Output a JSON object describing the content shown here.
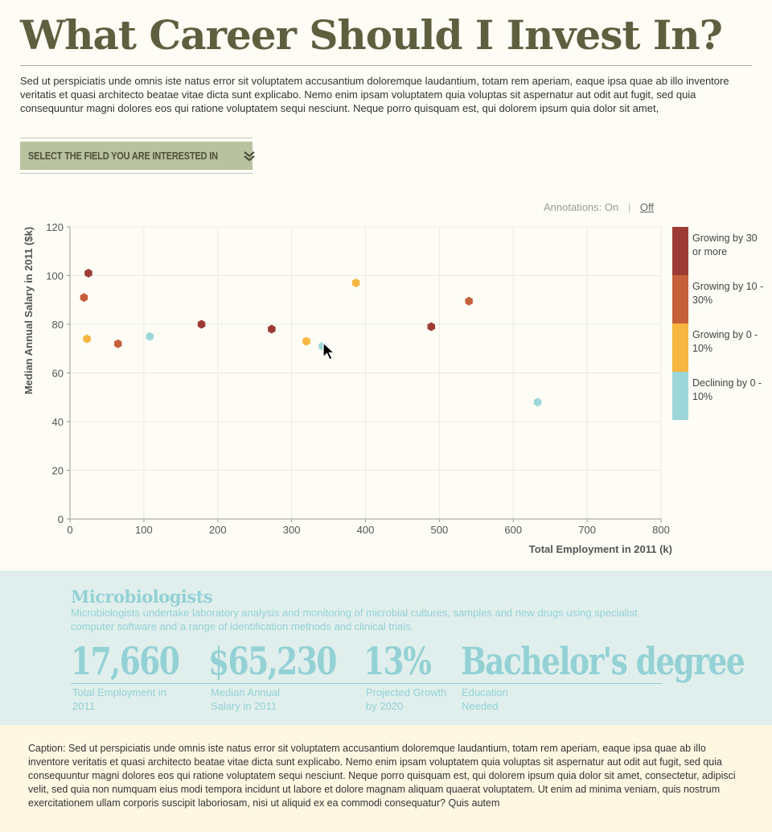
{
  "page": {
    "title": "What Career Should I Invest In?",
    "intro": "Sed ut perspiciatis unde omnis iste natus error sit voluptatem accusantium doloremque laudantium, totam rem aperiam, eaque ipsa quae ab illo inventore veritatis et quasi architecto beatae vitae dicta sunt explicabo. Nemo enim ipsam voluptatem quia voluptas sit aspernatur aut odit aut fugit, sed quia consequuntur magni dolores eos qui ratione voluptatem sequi nesciunt. Neque porro quisquam est, qui dolorem ipsum quia dolor sit amet,"
  },
  "field_select": {
    "label": "SELECT THE FIELD YOU ARE INTERESTED IN",
    "icon": "double-chevron-down-icon"
  },
  "annotations": {
    "label": "Annotations:",
    "on": "On",
    "separator": "|",
    "off": "Off",
    "selected": "Off"
  },
  "legend": {
    "items": [
      {
        "label": "Growing by 30 or more",
        "color": "#9e3a35"
      },
      {
        "label": "Growing by 10 - 30%",
        "color": "#c6603a"
      },
      {
        "label": "Growing by 0 - 10%",
        "color": "#f6b63f"
      },
      {
        "label": "Declining by 0 - 10%",
        "color": "#9dd6d8"
      }
    ]
  },
  "chart_data": {
    "type": "scatter",
    "title": "",
    "xlabel": "Total Employment in 2011 (k)",
    "ylabel": "Median Annual Salary in 2011 ($k)",
    "xlim": [
      0,
      800
    ],
    "ylim": [
      0,
      120
    ],
    "xticks": [
      0,
      100,
      200,
      300,
      400,
      500,
      600,
      700,
      800
    ],
    "yticks": [
      0,
      20,
      40,
      60,
      80,
      100,
      120
    ],
    "grid": true,
    "marker": "hexagon",
    "series": [
      {
        "name": "Growing by 30 or more",
        "color": "#9e3a35",
        "points": [
          [
            25,
            101
          ],
          [
            178,
            80
          ],
          [
            273,
            78
          ],
          [
            489,
            79
          ]
        ]
      },
      {
        "name": "Growing by 10 - 30%",
        "color": "#c6603a",
        "points": [
          [
            19,
            91
          ],
          [
            65,
            72
          ],
          [
            540,
            89.5
          ]
        ]
      },
      {
        "name": "Growing by 0 - 10%",
        "color": "#f6b63f",
        "points": [
          [
            23,
            74
          ],
          [
            320,
            73
          ],
          [
            387,
            97
          ]
        ]
      },
      {
        "name": "Declining by 0 - 10%",
        "color": "#9dd6d8",
        "points": [
          [
            108,
            75
          ],
          [
            342,
            71
          ],
          [
            633,
            48
          ]
        ]
      }
    ]
  },
  "detail": {
    "name": "Microbiologists",
    "description": "Microbiologists undertake laboratory analysis and monitoring of microbial cultures, samples and new drugs using specialist computer software and a range of identification methods and clinical trials.",
    "stats": [
      {
        "value": "17,660",
        "label": "Total Employment in 2011"
      },
      {
        "value": "$65,230",
        "label": "Median Annual Salary in 2011"
      },
      {
        "value": "13%",
        "label": "Projected Growth by 2020"
      },
      {
        "value": "Bachelor's degree",
        "label": "Education Needed"
      }
    ]
  },
  "caption": "Caption:  Sed ut perspiciatis unde omnis iste natus error sit voluptatem accusantium doloremque laudantium, totam rem aperiam, eaque ipsa quae ab illo inventore veritatis et quasi architecto beatae vitae dicta sunt explicabo. Nemo enim ipsam voluptatem quia voluptas sit aspernatur aut odit aut fugit, sed quia consequuntur magni dolores eos qui ratione voluptatem sequi nesciunt. Neque porro quisquam est, qui dolorem ipsum quia dolor sit amet, consectetur, adipisci velit, sed quia non numquam eius modi tempora incidunt ut labore et dolore magnam aliquam quaerat voluptatem. Ut enim ad minima veniam, quis nostrum exercitationem ullam corporis suscipit laboriosam, nisi ut aliquid ex ea commodi consequatur? Quis autem"
}
